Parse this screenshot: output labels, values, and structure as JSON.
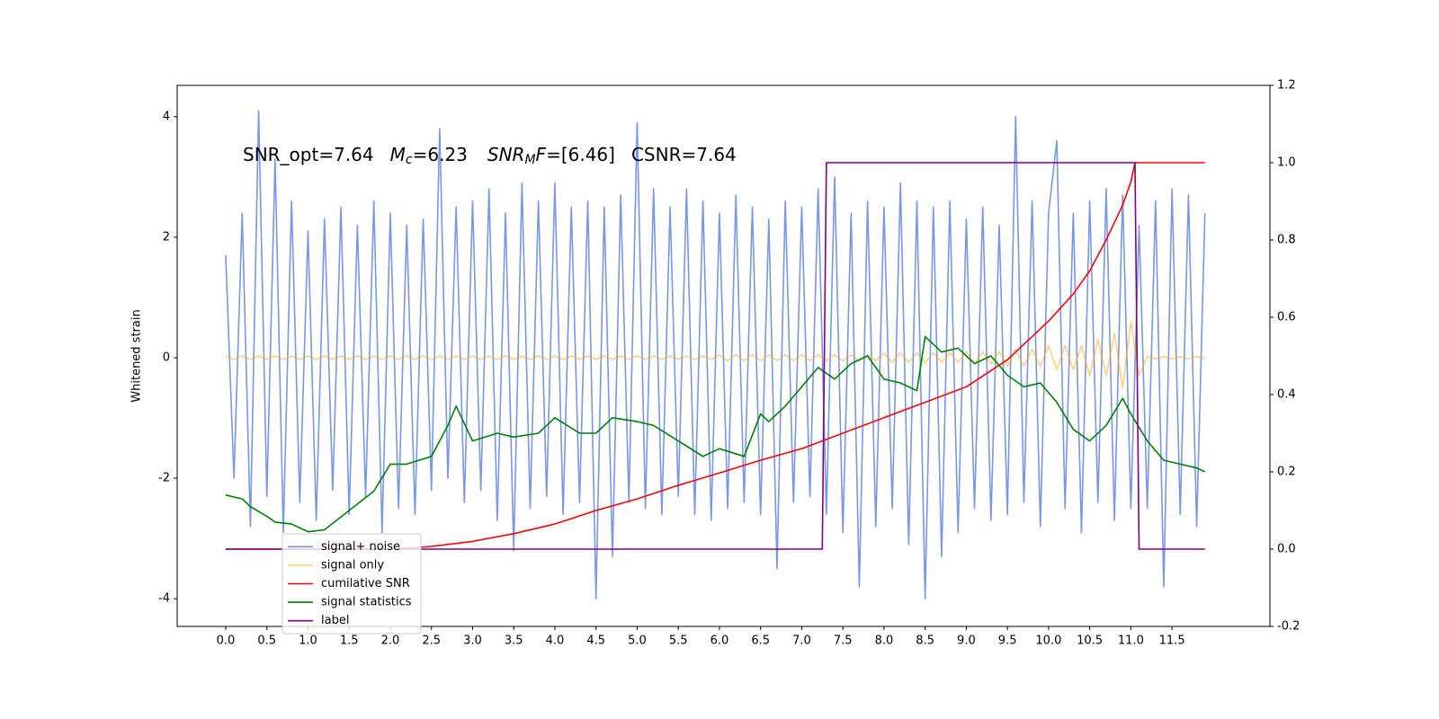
{
  "chart_data": {
    "type": "line",
    "annotation": [
      "SNR_opt=7.64",
      "M",
      "c",
      "=6.23",
      "SNR",
      "M",
      "F",
      "=[6.46]",
      "CSNR=7.64"
    ],
    "ylabel": "Whitened strain",
    "x": [
      0.0,
      0.1,
      0.2,
      0.3,
      0.4,
      0.5,
      0.6,
      0.7,
      0.8,
      0.9,
      1.0,
      1.1,
      1.2,
      1.3,
      1.4,
      1.5,
      1.6,
      1.7,
      1.8,
      1.9,
      2.0,
      2.1,
      2.2,
      2.3,
      2.4,
      2.5,
      2.6,
      2.7,
      2.8,
      2.9,
      3.0,
      3.1,
      3.2,
      3.3,
      3.4,
      3.5,
      3.6,
      3.7,
      3.8,
      3.9,
      4.0,
      4.1,
      4.2,
      4.3,
      4.4,
      4.5,
      4.6,
      4.7,
      4.8,
      4.9,
      5.0,
      5.1,
      5.2,
      5.3,
      5.4,
      5.5,
      5.6,
      5.7,
      5.8,
      5.9,
      6.0,
      6.1,
      6.2,
      6.3,
      6.4,
      6.5,
      6.6,
      6.7,
      6.8,
      6.9,
      7.0,
      7.1,
      7.2,
      7.3,
      7.4,
      7.5,
      7.6,
      7.7,
      7.8,
      7.9,
      8.0,
      8.1,
      8.2,
      8.3,
      8.4,
      8.5,
      8.6,
      8.7,
      8.8,
      8.9,
      9.0,
      9.1,
      9.2,
      9.3,
      9.4,
      9.5,
      9.6,
      9.7,
      9.8,
      9.9,
      10.0,
      10.1,
      10.2,
      10.3,
      10.4,
      10.5,
      10.6,
      10.7,
      10.8,
      10.9,
      11.0,
      11.1,
      11.2,
      11.3,
      11.4,
      11.5,
      11.6,
      11.7,
      11.8,
      11.9
    ],
    "series": [
      {
        "name": "signal+ noise",
        "color": "#4169e1",
        "alpha": 0.7,
        "values": [
          1.7,
          -2.0,
          2.4,
          -2.8,
          4.1,
          -2.3,
          3.3,
          -2.9,
          2.6,
          -2.4,
          2.1,
          -2.7,
          2.3,
          -2.2,
          2.5,
          -2.6,
          2.2,
          -2.3,
          2.6,
          -2.9,
          2.4,
          -2.5,
          2.2,
          -2.6,
          2.3,
          -2.2,
          3.8,
          -2.0,
          2.5,
          -2.4,
          2.6,
          -2.2,
          2.8,
          -2.7,
          2.4,
          -3.2,
          2.9,
          -2.5,
          2.6,
          -2.3,
          2.9,
          -2.6,
          2.5,
          -2.4,
          2.6,
          -4.0,
          2.5,
          -3.3,
          2.7,
          -2.4,
          3.9,
          -2.5,
          2.8,
          -2.6,
          2.5,
          -2.3,
          2.8,
          -2.6,
          2.6,
          -2.7,
          2.4,
          -2.5,
          2.7,
          -2.4,
          2.5,
          -2.6,
          2.3,
          -3.5,
          2.6,
          -2.4,
          2.5,
          -2.3,
          2.8,
          -2.6,
          3.0,
          -2.9,
          2.4,
          -3.8,
          2.6,
          -2.8,
          2.5,
          -2.5,
          2.9,
          -3.1,
          2.6,
          -4.0,
          2.5,
          -3.3,
          2.6,
          -2.9,
          2.3,
          -2.5,
          2.5,
          -2.7,
          2.2,
          -2.6,
          4.0,
          -2.4,
          2.6,
          -2.8,
          2.4,
          3.6,
          -2.5,
          2.4,
          -2.9,
          2.6,
          -2.4,
          2.8,
          -2.7,
          2.7,
          -2.5,
          2.2,
          -2.5,
          2.6,
          -3.8,
          2.8,
          -2.6,
          2.7,
          -2.8,
          2.4
        ]
      },
      {
        "name": "signal only",
        "color": "#ffa500",
        "alpha": 0.5,
        "values": [
          0.03,
          -0.03,
          0.03,
          -0.03,
          0.03,
          -0.03,
          0.03,
          -0.03,
          0.03,
          -0.03,
          0.03,
          -0.03,
          0.03,
          -0.03,
          0.03,
          -0.03,
          0.03,
          -0.03,
          0.03,
          -0.03,
          0.03,
          -0.03,
          0.03,
          -0.03,
          0.03,
          -0.03,
          0.03,
          -0.03,
          0.03,
          -0.03,
          0.03,
          -0.03,
          0.03,
          -0.03,
          0.03,
          -0.03,
          0.03,
          -0.03,
          0.03,
          -0.03,
          0.03,
          -0.03,
          0.03,
          -0.03,
          0.03,
          -0.03,
          0.03,
          -0.03,
          0.03,
          -0.03,
          0.03,
          -0.03,
          0.03,
          -0.03,
          0.03,
          -0.03,
          0.03,
          -0.03,
          0.03,
          -0.03,
          0.05,
          -0.05,
          0.05,
          -0.05,
          0.05,
          -0.05,
          0.05,
          -0.05,
          0.05,
          -0.05,
          0.05,
          -0.05,
          0.05,
          -0.05,
          0.05,
          -0.05,
          0.05,
          -0.05,
          0.05,
          -0.05,
          0.08,
          -0.08,
          0.08,
          -0.08,
          0.08,
          -0.08,
          0.08,
          -0.08,
          0.08,
          -0.08,
          0.1,
          -0.1,
          0.1,
          -0.1,
          0.1,
          -0.14,
          0.14,
          -0.14,
          0.14,
          -0.14,
          0.2,
          -0.2,
          0.2,
          -0.2,
          0.2,
          -0.3,
          0.3,
          -0.3,
          0.4,
          -0.5,
          0.6,
          -0.3,
          0.02,
          -0.02,
          0.02,
          -0.02,
          0.02,
          -0.02,
          0.02,
          -0.02
        ]
      },
      {
        "name": "cumilative SNR",
        "color": "#ff0000",
        "axis": "y2",
        "x": [
          0,
          2.0,
          2.5,
          3.0,
          3.5,
          4.0,
          4.5,
          5.0,
          5.5,
          6.0,
          6.5,
          7.0,
          7.5,
          8.0,
          8.5,
          9.0,
          9.5,
          10.0,
          10.3,
          10.5,
          10.7,
          10.9,
          11.0,
          11.05,
          11.5,
          11.9
        ],
        "values": [
          0,
          0,
          0.007,
          0.02,
          0.04,
          0.065,
          0.1,
          0.13,
          0.165,
          0.197,
          0.23,
          0.26,
          0.3,
          0.34,
          0.38,
          0.42,
          0.49,
          0.59,
          0.66,
          0.72,
          0.8,
          0.89,
          0.95,
          1.0,
          1.0,
          1.0
        ]
      },
      {
        "name": "signal statistics",
        "color": "#008000",
        "axis": "y2",
        "x": [
          0,
          0.2,
          0.3,
          0.5,
          0.6,
          0.8,
          1.0,
          1.2,
          1.5,
          1.8,
          2.0,
          2.2,
          2.5,
          2.7,
          2.8,
          3.0,
          3.3,
          3.5,
          3.8,
          4.0,
          4.3,
          4.5,
          4.7,
          5.0,
          5.2,
          5.5,
          5.8,
          6.0,
          6.3,
          6.5,
          6.6,
          6.8,
          7.0,
          7.2,
          7.4,
          7.6,
          7.8,
          8.0,
          8.2,
          8.4,
          8.5,
          8.7,
          8.9,
          9.1,
          9.3,
          9.5,
          9.7,
          9.9,
          10.1,
          10.3,
          10.5,
          10.7,
          10.9,
          11.0,
          11.2,
          11.4,
          11.6,
          11.8,
          11.9
        ],
        "values": [
          0.14,
          0.13,
          0.11,
          0.085,
          0.07,
          0.065,
          0.045,
          0.05,
          0.1,
          0.15,
          0.22,
          0.22,
          0.24,
          0.32,
          0.37,
          0.28,
          0.3,
          0.29,
          0.3,
          0.34,
          0.3,
          0.3,
          0.34,
          0.33,
          0.32,
          0.28,
          0.24,
          0.26,
          0.24,
          0.35,
          0.33,
          0.37,
          0.42,
          0.47,
          0.44,
          0.48,
          0.5,
          0.44,
          0.43,
          0.41,
          0.55,
          0.51,
          0.52,
          0.48,
          0.5,
          0.45,
          0.42,
          0.43,
          0.38,
          0.31,
          0.28,
          0.32,
          0.39,
          0.35,
          0.28,
          0.23,
          0.22,
          0.21,
          0.2
        ]
      },
      {
        "name": "label",
        "color": "#800080",
        "axis": "y2",
        "x": [
          0,
          7.25,
          7.3,
          11.05,
          11.1,
          11.9
        ],
        "values": [
          0,
          0,
          1,
          1,
          0,
          0
        ]
      }
    ],
    "xlim": [
      -0.59,
      12.69
    ],
    "xticks": [
      {
        "value": 0,
        "label": "0.0"
      },
      0.5,
      {
        "value": 1,
        "label": "1.0"
      },
      1.5,
      {
        "value": 2,
        "label": "2.0"
      },
      2.5,
      {
        "value": 3,
        "label": "3.0"
      },
      3.5,
      {
        "value": 4,
        "label": "4.0"
      },
      4.5,
      {
        "value": 5,
        "label": "5.0"
      },
      5.5,
      {
        "value": 6,
        "label": "6.0"
      },
      6.5,
      {
        "value": 7,
        "label": "7.0"
      },
      7.5,
      {
        "value": 8,
        "label": "8.0"
      },
      8.5,
      {
        "value": 9,
        "label": "9.0"
      },
      9.5,
      {
        "value": 10,
        "label": "10.0"
      },
      10.5,
      {
        "value": 11,
        "label": "11.0"
      },
      11.5
    ],
    "ylim": [
      -4.46,
      4.52
    ],
    "yticks": [
      -4,
      -2,
      0,
      2,
      4
    ],
    "y2lim": [
      -0.2,
      1.2
    ],
    "y2ticks": [
      -0.2,
      {
        "value": 0,
        "label": "0.0"
      },
      0.2,
      0.4,
      0.6,
      0.8,
      {
        "value": 1,
        "label": "1.0"
      },
      1.2
    ],
    "legend": "lower left"
  }
}
